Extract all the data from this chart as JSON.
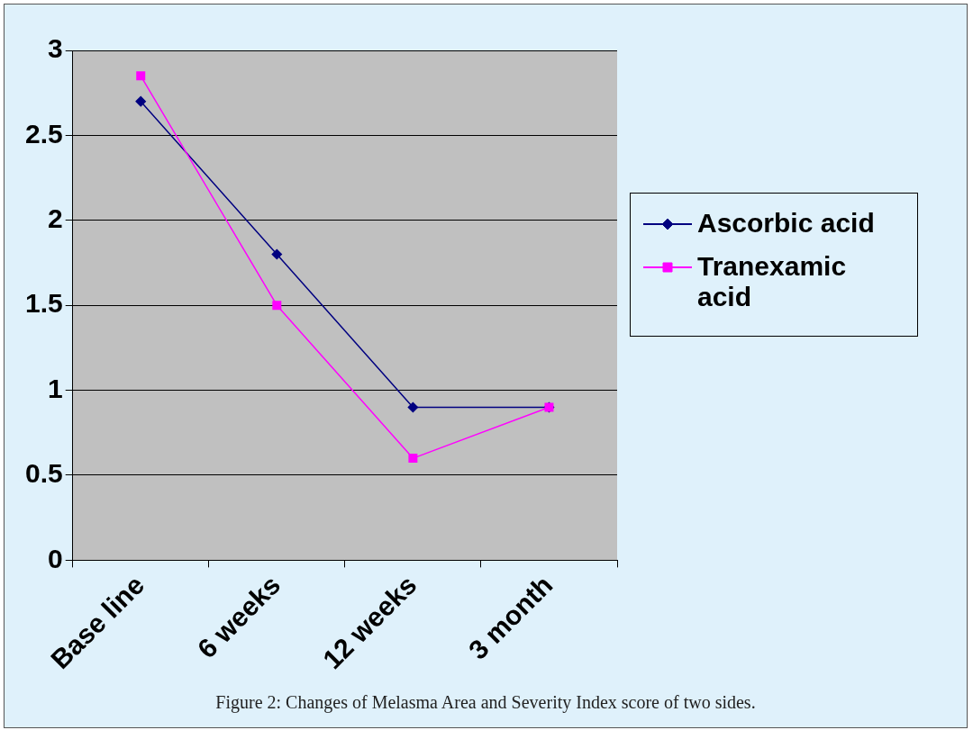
{
  "chart_data": {
    "type": "line",
    "categories": [
      "Base line",
      "6 weeks",
      "12 weeks",
      "3 month"
    ],
    "series": [
      {
        "name": "Ascorbic acid",
        "color": "#000080",
        "values": [
          2.7,
          1.8,
          0.9,
          0.9
        ]
      },
      {
        "name": "Tranexamic acid",
        "color": "#ff00ff",
        "values": [
          2.85,
          1.5,
          0.6,
          0.9
        ],
        "marker": "square"
      }
    ],
    "ylim": [
      0,
      3
    ],
    "yticks": [
      0,
      0.5,
      1,
      1.5,
      2,
      2.5,
      3
    ],
    "grid": "y",
    "legend": "right",
    "marker": "diamond",
    "line_style": "solid",
    "annotations": [
      "Figure 2: Changes of Melasma Area and Severity Index score of two sides."
    ]
  }
}
